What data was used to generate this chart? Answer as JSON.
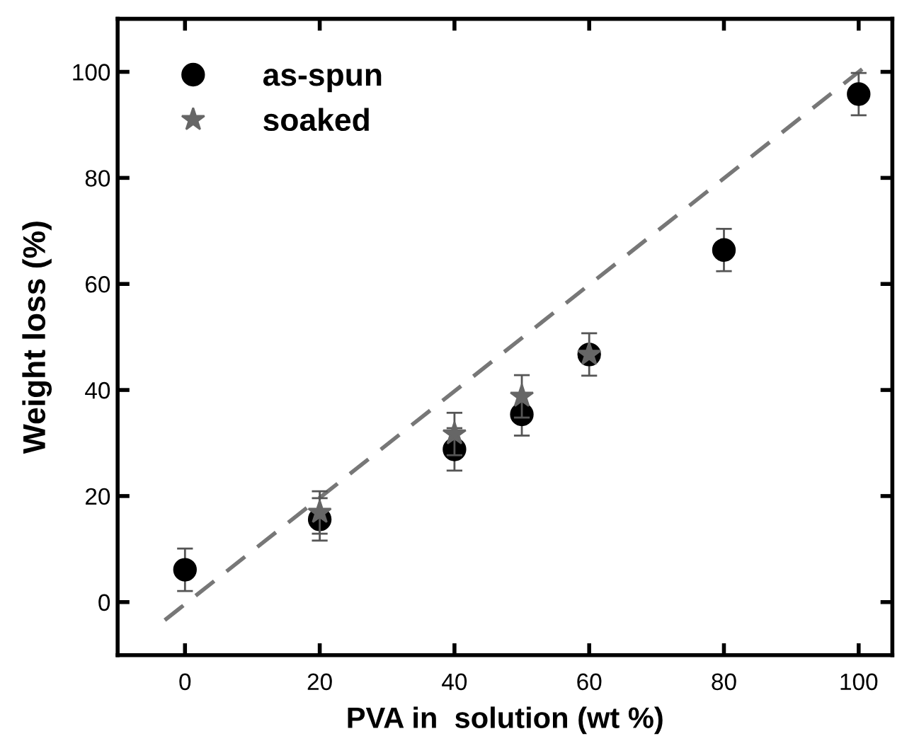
{
  "chart_data": {
    "type": "scatter",
    "xlabel": "PVA in  solution (wt %)",
    "ylabel": "Weight loss (%)",
    "xlim": [
      -10,
      105
    ],
    "ylim": [
      -10,
      110
    ],
    "xticks": [
      0,
      20,
      40,
      60,
      80,
      100
    ],
    "yticks": [
      0,
      20,
      40,
      60,
      80,
      100
    ],
    "grid": false,
    "legend": "top left",
    "series": [
      {
        "name": "as-spun",
        "color": "#000000",
        "marker": "circle",
        "x": [
          0,
          20,
          40,
          50,
          60,
          80,
          100
        ],
        "values": [
          6.1,
          15.6,
          28.8,
          35.4,
          46.7,
          66.4,
          95.8
        ],
        "errors": [
          4,
          4,
          4,
          4,
          4,
          4,
          4
        ]
      },
      {
        "name": "soaked",
        "color": "#666666",
        "marker": "star",
        "x": [
          20,
          40,
          50,
          60
        ],
        "values": [
          16.9,
          31.7,
          38.8,
          46.7
        ],
        "errors": [
          4,
          4,
          4,
          null
        ]
      },
      {
        "type": "line",
        "color": "#777777",
        "line_style": "dashed",
        "marker": "none",
        "x": [
          -3,
          101
        ],
        "values": [
          -3.4,
          101
        ]
      }
    ]
  }
}
